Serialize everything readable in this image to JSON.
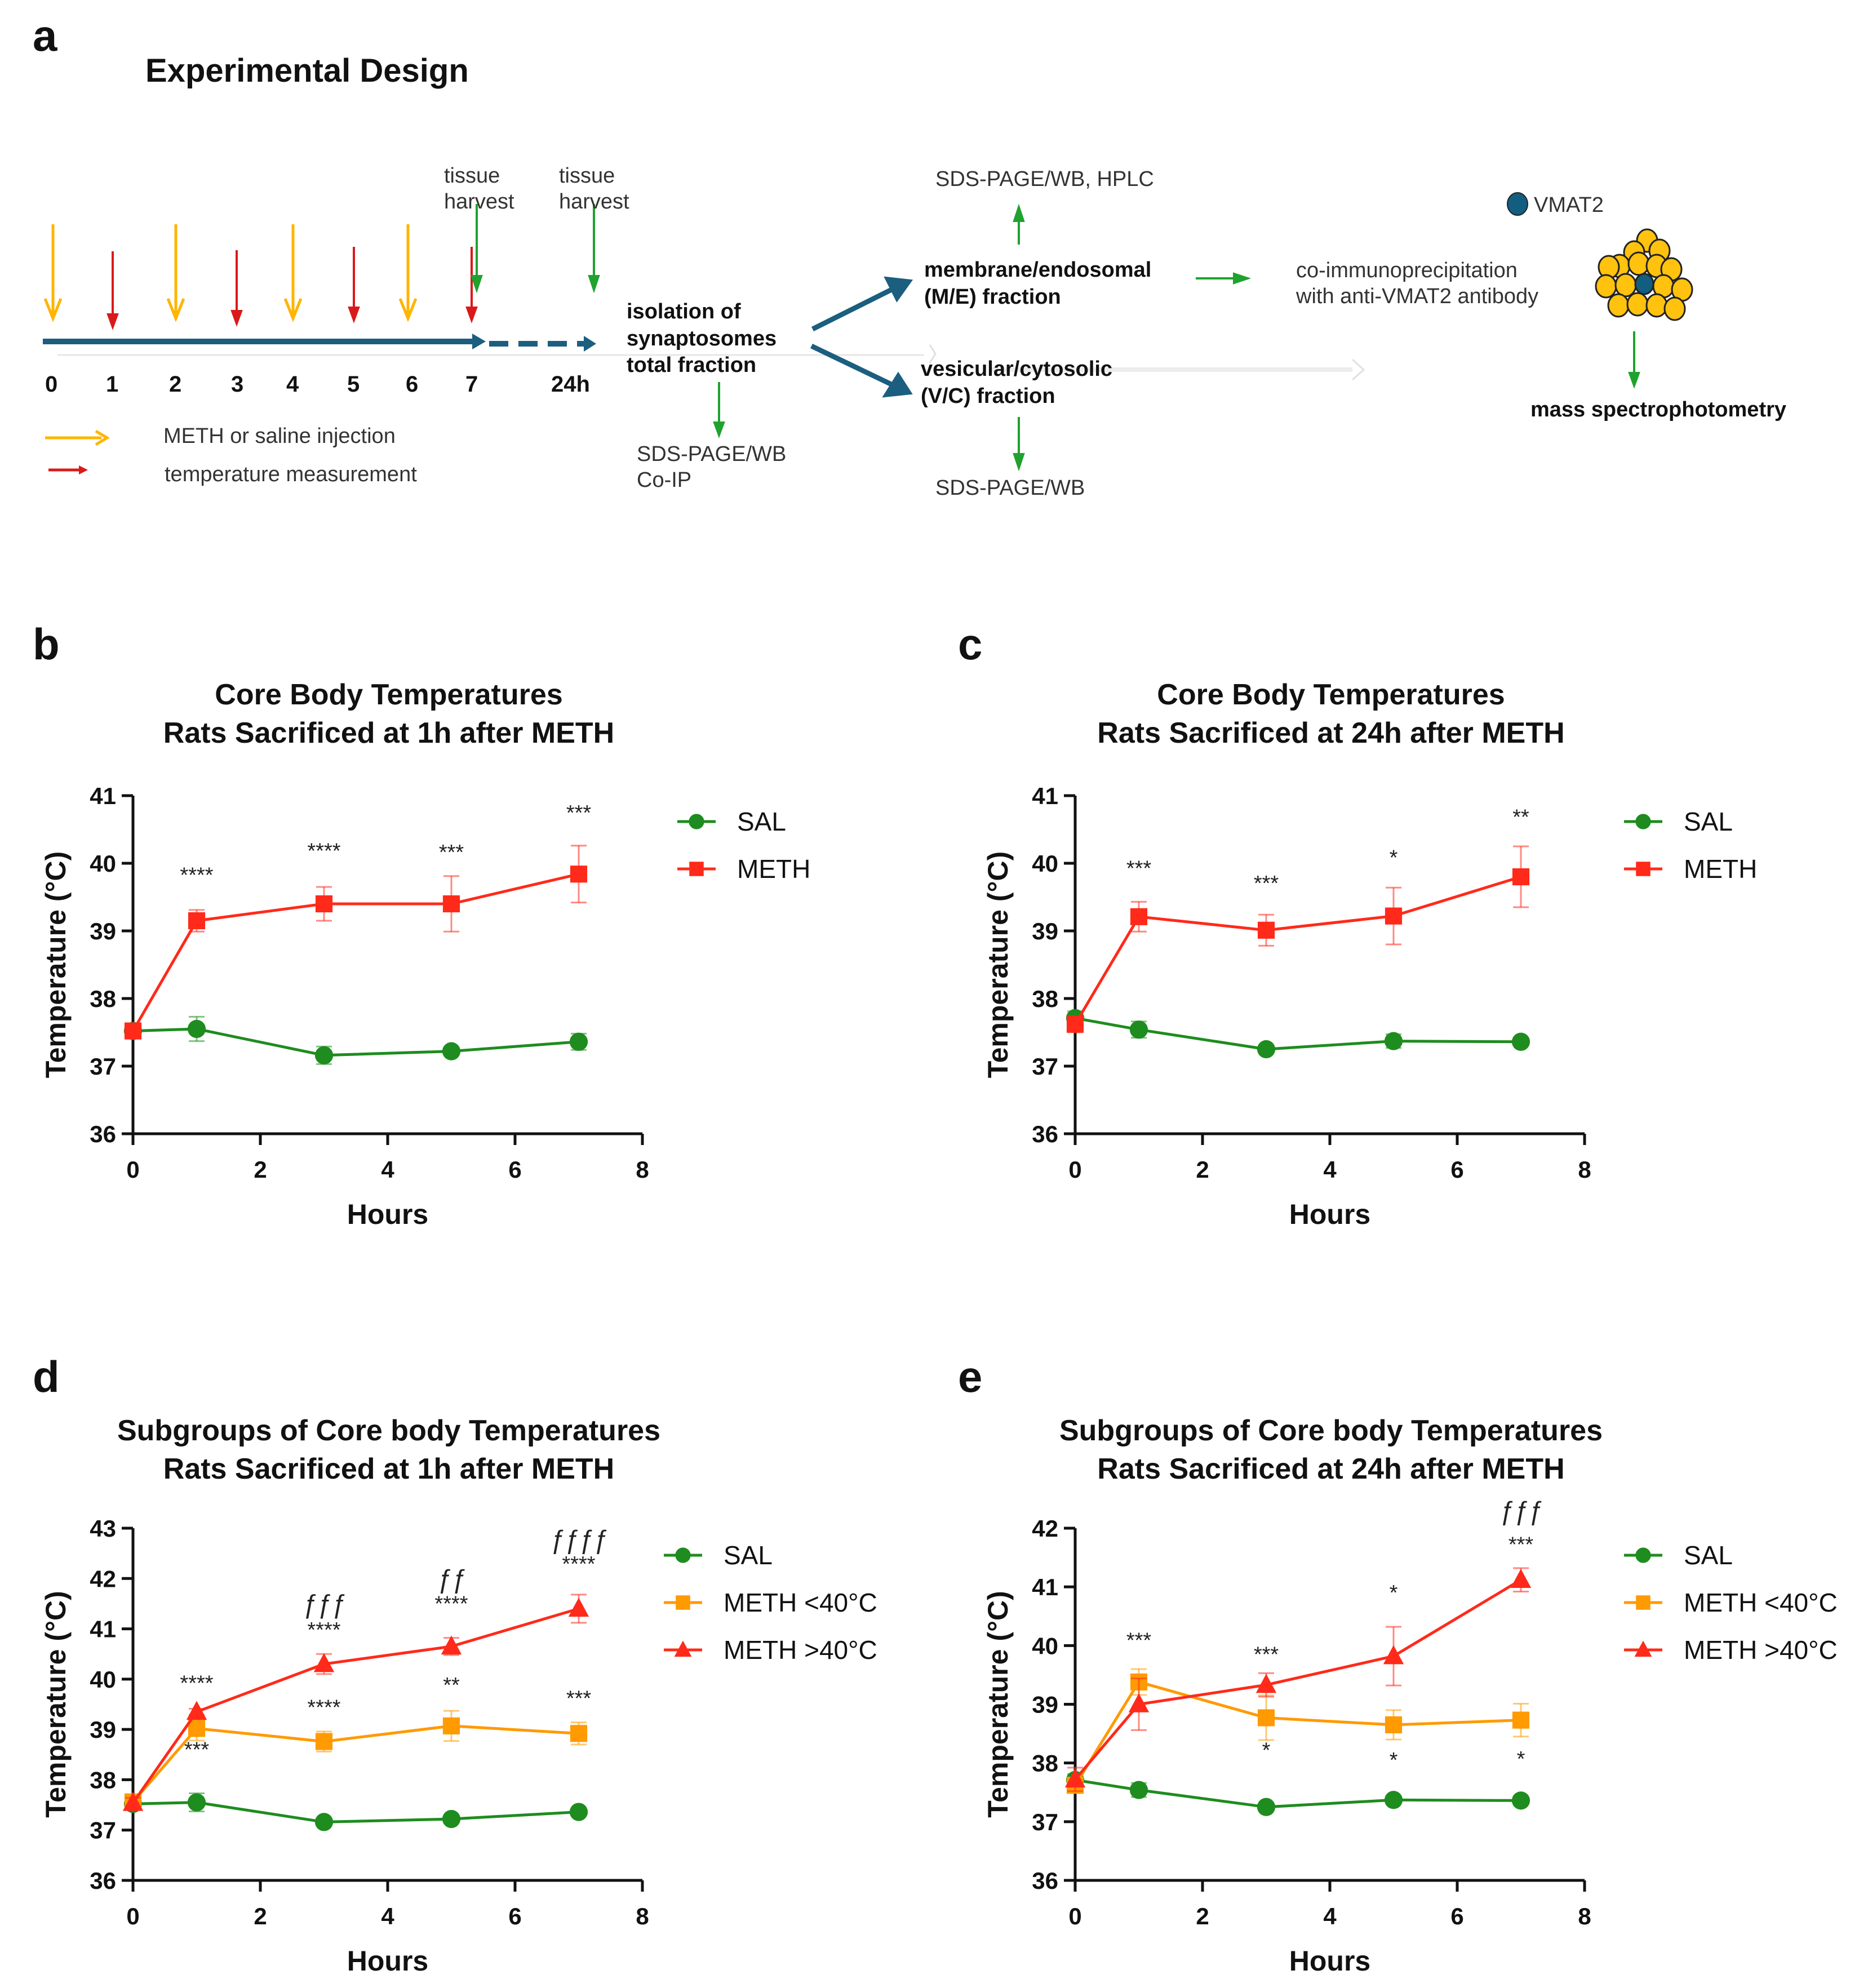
{
  "panel_a": {
    "letter": "a",
    "title": "Experimental Design",
    "timeline_ticks": [
      "0",
      "1",
      "2",
      "3",
      "4",
      "5",
      "6",
      "7",
      "24h"
    ],
    "harvest_labels": [
      {
        "line1": "tissue",
        "line2": "harvest"
      },
      {
        "line1": "tissue",
        "line2": "harvest"
      }
    ],
    "legend": {
      "injection": "METH or saline injection",
      "temperature": "temperature measurement"
    },
    "synaptosome_box": [
      "isolation of",
      "synaptosomes",
      "total fraction"
    ],
    "synaptosome_assay": [
      "SDS-PAGE/WB",
      "Co-IP"
    ],
    "me_fraction": [
      "membrane/endosomal",
      "(M/E) fraction"
    ],
    "me_assay": "SDS-PAGE/WB, HPLC",
    "vc_fraction": [
      "vesicular/cytosolic",
      "(V/C) fraction"
    ],
    "vc_assay": "SDS-PAGE/WB",
    "coip": [
      "co-immunoprecipitation",
      "with anti-VMAT2 antibody"
    ],
    "vmat2_label": "VMAT2",
    "mass_spec": "mass spectrophotometry",
    "colors": {
      "injection": "#FFB400",
      "temperature": "#D91A1A",
      "harvest": "#1FA22E",
      "timeline": "#1B5E80",
      "bead": "#FFC20E",
      "vmat2": "#125E80"
    }
  },
  "chart_data": [
    {
      "id": "b",
      "letter": "b",
      "type": "line",
      "title": [
        "Core Body Temperatures",
        "Rats Sacrificed at 1h after METH"
      ],
      "xlabel": "Hours",
      "ylabel": "Temperature (°C)",
      "xlim": [
        0,
        8
      ],
      "ylim": [
        36,
        41
      ],
      "xticks": [
        0,
        2,
        4,
        6,
        8
      ],
      "yticks": [
        36,
        37,
        38,
        39,
        40,
        41
      ],
      "grid": false,
      "legend_position": "right",
      "x": [
        0,
        1,
        3,
        5,
        7
      ],
      "series": [
        {
          "name": "SAL",
          "color": "#1E8C1E",
          "marker": "circle",
          "values": [
            37.52,
            37.55,
            37.16,
            37.22,
            37.36
          ],
          "err": [
            0.1,
            0.18,
            0.13,
            0.05,
            0.12
          ]
        },
        {
          "name": "METH",
          "color": "#FF2A1A",
          "marker": "square",
          "values": [
            37.52,
            39.15,
            39.4,
            39.4,
            39.84
          ],
          "err": [
            0.1,
            0.16,
            0.25,
            0.41,
            0.42
          ]
        }
      ],
      "annotations": [
        {
          "x": 1,
          "y": 39.72,
          "text": "****"
        },
        {
          "x": 3,
          "y": 40.08,
          "text": "****"
        },
        {
          "x": 5,
          "y": 40.06,
          "text": "***"
        },
        {
          "x": 7,
          "y": 40.64,
          "text": "***"
        }
      ]
    },
    {
      "id": "c",
      "letter": "c",
      "type": "line",
      "title": [
        "Core Body Temperatures",
        "Rats Sacrificed at 24h after METH"
      ],
      "xlabel": "Hours",
      "ylabel": "Temperature (°C)",
      "xlim": [
        0,
        8
      ],
      "ylim": [
        36,
        41
      ],
      "xticks": [
        0,
        2,
        4,
        6,
        8
      ],
      "yticks": [
        36,
        37,
        38,
        39,
        40,
        41
      ],
      "grid": false,
      "legend_position": "right",
      "x": [
        0,
        1,
        3,
        5,
        7
      ],
      "series": [
        {
          "name": "SAL",
          "color": "#1E8C1E",
          "marker": "circle",
          "values": [
            37.71,
            37.54,
            37.25,
            37.37,
            37.36
          ],
          "err": [
            0.1,
            0.12,
            0.04,
            0.1,
            0.04
          ]
        },
        {
          "name": "METH",
          "color": "#FF2A1A",
          "marker": "square",
          "values": [
            37.62,
            39.21,
            39.01,
            39.22,
            39.8
          ],
          "err": [
            0.12,
            0.22,
            0.23,
            0.42,
            0.45
          ]
        }
      ],
      "annotations": [
        {
          "x": 1,
          "y": 39.82,
          "text": "***"
        },
        {
          "x": 3,
          "y": 39.6,
          "text": "***"
        },
        {
          "x": 5,
          "y": 39.98,
          "text": "*"
        },
        {
          "x": 7,
          "y": 40.58,
          "text": "**"
        }
      ]
    },
    {
      "id": "d",
      "letter": "d",
      "type": "line",
      "title": [
        "Subgroups of Core body Temperatures",
        "Rats Sacrificed at 1h after METH"
      ],
      "xlabel": "Hours",
      "ylabel": "Temperature (°C)",
      "xlim": [
        0,
        8
      ],
      "ylim": [
        36,
        43
      ],
      "xticks": [
        0,
        2,
        4,
        6,
        8
      ],
      "yticks": [
        36,
        37,
        38,
        39,
        40,
        41,
        42,
        43
      ],
      "grid": false,
      "legend_position": "right",
      "x": [
        0,
        1,
        3,
        5,
        7
      ],
      "series": [
        {
          "name": "SAL",
          "color": "#1E8C1E",
          "marker": "circle",
          "values": [
            37.52,
            37.55,
            37.16,
            37.22,
            37.36
          ],
          "err": [
            0.08,
            0.18,
            0.03,
            0.04,
            0.05
          ]
        },
        {
          "name": "METH <40°C",
          "color": "#FF9A00",
          "marker": "square",
          "values": [
            37.56,
            39.02,
            38.76,
            39.07,
            38.92
          ],
          "err": [
            0.12,
            0.24,
            0.2,
            0.3,
            0.22
          ]
        },
        {
          "name": "METH >40°C",
          "color": "#FF2A1A",
          "marker": "triangle",
          "values": [
            37.54,
            39.35,
            40.3,
            40.65,
            41.4
          ],
          "err": [
            0.1,
            0.06,
            0.2,
            0.17,
            0.28
          ]
        }
      ],
      "annotations": [
        {
          "x": 1,
          "y": 39.78,
          "text": "****"
        },
        {
          "x": 1,
          "y": 38.46,
          "text": "***"
        },
        {
          "x": 3,
          "y": 40.84,
          "text": "****"
        },
        {
          "x": 3,
          "y": 39.3,
          "text": "****"
        },
        {
          "x": 3,
          "y": 41.32,
          "text": "ƒƒƒ",
          "style": "italic"
        },
        {
          "x": 5,
          "y": 41.36,
          "text": "****"
        },
        {
          "x": 5,
          "y": 39.74,
          "text": "**"
        },
        {
          "x": 5,
          "y": 41.82,
          "text": "ƒƒ",
          "style": "italic"
        },
        {
          "x": 7,
          "y": 42.15,
          "text": "****"
        },
        {
          "x": 7,
          "y": 39.48,
          "text": "***"
        },
        {
          "x": 7,
          "y": 42.6,
          "text": "ƒƒƒƒ",
          "style": "italic"
        }
      ]
    },
    {
      "id": "e",
      "letter": "e",
      "type": "line",
      "title": [
        "Subgroups of Core body Temperatures",
        "Rats Sacrificed at 24h after METH"
      ],
      "xlabel": "Hours",
      "ylabel": "Temperature (°C)",
      "xlim": [
        0,
        8
      ],
      "ylim": [
        36,
        42
      ],
      "xticks": [
        0,
        2,
        4,
        6,
        8
      ],
      "yticks": [
        36,
        37,
        38,
        39,
        40,
        41,
        42
      ],
      "grid": false,
      "legend_position": "right",
      "x": [
        0,
        1,
        3,
        5,
        7
      ],
      "series": [
        {
          "name": "SAL",
          "color": "#1E8C1E",
          "marker": "circle",
          "values": [
            37.71,
            37.54,
            37.25,
            37.37,
            37.36
          ],
          "err": [
            0.1,
            0.12,
            0.04,
            0.05,
            0.04
          ]
        },
        {
          "name": "METH <40°C",
          "color": "#FF9A00",
          "marker": "square",
          "values": [
            37.62,
            39.38,
            38.77,
            38.65,
            38.73
          ],
          "err": [
            0.12,
            0.22,
            0.38,
            0.25,
            0.28
          ]
        },
        {
          "name": "METH >40°C",
          "color": "#FF2A1A",
          "marker": "triangle",
          "values": [
            37.72,
            39.0,
            39.33,
            39.82,
            41.12
          ],
          "err": [
            0.2,
            0.44,
            0.2,
            0.5,
            0.2
          ]
        }
      ],
      "annotations": [
        {
          "x": 1,
          "y": 39.97,
          "text": "***"
        },
        {
          "x": 3,
          "y": 39.73,
          "text": "***"
        },
        {
          "x": 3,
          "y": 38.1,
          "text": "*"
        },
        {
          "x": 5,
          "y": 40.78,
          "text": "*"
        },
        {
          "x": 5,
          "y": 37.93,
          "text": "*"
        },
        {
          "x": 7,
          "y": 41.6,
          "text": "***"
        },
        {
          "x": 7,
          "y": 37.95,
          "text": "*"
        },
        {
          "x": 7,
          "y": 42.15,
          "text": "ƒƒƒ",
          "style": "italic"
        }
      ]
    }
  ]
}
